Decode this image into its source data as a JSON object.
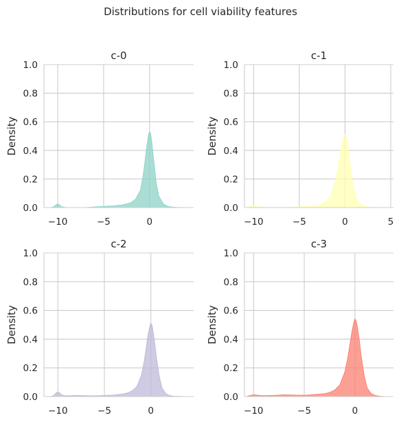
{
  "figure": {
    "title": "Distributions for cell viability features"
  },
  "chart_data": [
    {
      "type": "area",
      "title": "c-0",
      "xlabel": "",
      "ylabel": "Density",
      "xticks": [
        -10,
        -5,
        0
      ],
      "yticks": [
        0.0,
        0.2,
        0.4,
        0.6,
        0.8,
        1.0
      ],
      "ytick_labels": [
        "0.0",
        "0.2",
        "0.4",
        "0.6",
        "0.8",
        "1.0"
      ],
      "xlim": [
        -11.5,
        4.8
      ],
      "ylim": [
        0,
        1.0
      ],
      "grid": true,
      "color": "#8dd3c7",
      "x": [
        -10.7,
        -10.4,
        -10.2,
        -10.0,
        -9.8,
        -9.6,
        -9.3,
        -9.0,
        -8.0,
        -7.0,
        -6.0,
        -5.0,
        -4.0,
        -3.0,
        -2.5,
        -2.0,
        -1.5,
        -1.0,
        -0.7,
        -0.5,
        -0.3,
        -0.1,
        0.0,
        0.1,
        0.2,
        0.3,
        0.5,
        0.7,
        1.0,
        1.5,
        2.0,
        2.5,
        3.0,
        3.8
      ],
      "y": [
        0.0,
        0.006,
        0.018,
        0.025,
        0.018,
        0.006,
        0.002,
        0.0,
        0.0,
        0.0,
        0.004,
        0.008,
        0.011,
        0.018,
        0.025,
        0.035,
        0.06,
        0.12,
        0.22,
        0.32,
        0.43,
        0.51,
        0.53,
        0.52,
        0.48,
        0.42,
        0.3,
        0.18,
        0.08,
        0.025,
        0.008,
        0.003,
        0.001,
        0.0
      ]
    },
    {
      "type": "area",
      "title": "c-1",
      "xlabel": "",
      "ylabel": "Density",
      "xticks": [
        -10,
        -5,
        0,
        5
      ],
      "yticks": [
        0.0,
        0.2,
        0.4,
        0.6,
        0.8,
        1.0
      ],
      "ytick_labels": [
        "0.0",
        "0.2",
        "0.4",
        "0.6",
        "0.8",
        "1.0"
      ],
      "xlim": [
        -11.0,
        5.3
      ],
      "ylim": [
        0,
        1.0
      ],
      "grid": true,
      "color": "#ffffb3",
      "x": [
        -10.7,
        -10.4,
        -10.1,
        -9.8,
        -9.5,
        -9.0,
        -8.0,
        -6.0,
        -5.0,
        -4.0,
        -3.0,
        -2.5,
        -2.0,
        -1.5,
        -1.0,
        -0.7,
        -0.5,
        -0.3,
        -0.1,
        0.0,
        0.1,
        0.2,
        0.4,
        0.6,
        0.9,
        1.2,
        1.6,
        2.0,
        2.5,
        3.0,
        3.8
      ],
      "y": [
        0.0,
        0.008,
        0.013,
        0.01,
        0.005,
        0.002,
        0.0,
        0.002,
        0.005,
        0.008,
        0.015,
        0.025,
        0.045,
        0.09,
        0.2,
        0.3,
        0.39,
        0.46,
        0.5,
        0.51,
        0.5,
        0.47,
        0.39,
        0.28,
        0.15,
        0.07,
        0.025,
        0.01,
        0.004,
        0.001,
        0.0
      ]
    },
    {
      "type": "area",
      "title": "c-2",
      "xlabel": "",
      "ylabel": "Density",
      "xticks": [
        -10,
        -5,
        0
      ],
      "yticks": [
        0.0,
        0.2,
        0.4,
        0.6,
        0.8,
        1.0
      ],
      "ytick_labels": [
        "0.0",
        "0.2",
        "0.4",
        "0.6",
        "0.8",
        "1.0"
      ],
      "xlim": [
        -11.5,
        4.6
      ],
      "ylim": [
        0,
        1.0
      ],
      "grid": true,
      "color": "#bebada",
      "x": [
        -10.7,
        -10.4,
        -10.2,
        -10.0,
        -9.8,
        -9.6,
        -9.3,
        -9.0,
        -8.0,
        -7.0,
        -6.0,
        -5.0,
        -4.0,
        -3.0,
        -2.5,
        -2.0,
        -1.5,
        -1.0,
        -0.7,
        -0.5,
        -0.3,
        -0.1,
        0.0,
        0.1,
        0.2,
        0.4,
        0.6,
        0.9,
        1.2,
        1.6,
        2.0,
        2.5,
        3.0,
        3.6
      ],
      "y": [
        0.0,
        0.01,
        0.025,
        0.032,
        0.025,
        0.012,
        0.006,
        0.005,
        0.008,
        0.006,
        0.005,
        0.007,
        0.01,
        0.018,
        0.025,
        0.04,
        0.07,
        0.15,
        0.25,
        0.34,
        0.43,
        0.49,
        0.51,
        0.5,
        0.47,
        0.38,
        0.27,
        0.14,
        0.06,
        0.02,
        0.007,
        0.002,
        0.001,
        0.0
      ]
    },
    {
      "type": "area",
      "title": "c-3",
      "xlabel": "",
      "ylabel": "Density",
      "xticks": [
        -10,
        -5,
        0
      ],
      "yticks": [
        0.0,
        0.2,
        0.4,
        0.6,
        0.8,
        1.0
      ],
      "ytick_labels": [
        "0.0",
        "0.2",
        "0.4",
        "0.6",
        "0.8",
        "1.0"
      ],
      "xlim": [
        -10.9,
        3.8
      ],
      "ylim": [
        0,
        1.0
      ],
      "grid": true,
      "color": "#fb8072",
      "x": [
        -10.7,
        -10.3,
        -10.0,
        -9.7,
        -9.3,
        -9.0,
        -8.0,
        -7.0,
        -6.0,
        -5.0,
        -4.0,
        -3.0,
        -2.5,
        -2.0,
        -1.5,
        -1.0,
        -0.7,
        -0.5,
        -0.3,
        -0.1,
        0.0,
        0.1,
        0.2,
        0.4,
        0.6,
        0.9,
        1.2,
        1.6,
        2.0,
        2.5,
        3.0
      ],
      "y": [
        0.0,
        0.008,
        0.012,
        0.01,
        0.007,
        0.006,
        0.008,
        0.012,
        0.01,
        0.009,
        0.014,
        0.02,
        0.028,
        0.045,
        0.08,
        0.17,
        0.27,
        0.36,
        0.45,
        0.52,
        0.54,
        0.53,
        0.5,
        0.41,
        0.29,
        0.15,
        0.06,
        0.02,
        0.007,
        0.002,
        0.0
      ]
    }
  ]
}
